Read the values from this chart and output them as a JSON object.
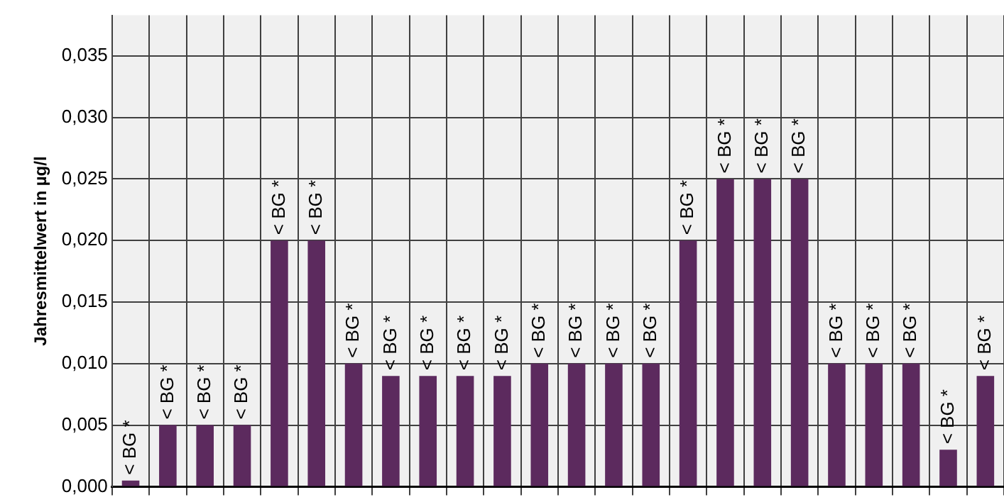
{
  "chart_data": {
    "type": "bar",
    "ylabel": "Jahresmittelwert in µg/l",
    "categories": [
      null,
      null,
      null,
      null,
      null,
      null,
      null,
      null,
      null,
      null,
      null,
      null,
      null,
      null,
      null,
      null,
      null,
      null,
      null,
      null,
      null,
      null,
      null,
      null
    ],
    "values": [
      0.0005,
      0.005,
      0.005,
      0.005,
      0.02,
      0.02,
      0.01,
      0.009,
      0.009,
      0.009,
      0.009,
      0.01,
      0.01,
      0.01,
      0.01,
      0.02,
      0.025,
      0.025,
      0.025,
      0.01,
      0.01,
      0.01,
      0.003,
      0.009
    ],
    "value_labels": [
      "< BG *",
      "< BG *",
      "< BG *",
      "< BG *",
      "< BG *",
      "< BG *",
      "< BG *",
      "< BG *",
      "< BG *",
      "< BG *",
      "< BG *",
      "< BG *",
      "< BG *",
      "< BG *",
      "< BG *",
      "< BG *",
      "< BG *",
      "< BG *",
      "< BG *",
      "< BG *",
      "< BG *",
      "< BG *",
      "< BG *",
      "< BG *"
    ],
    "color": "#5c2a5e",
    "ylim": [
      0,
      0.0383
    ],
    "yticks": [
      {
        "value": 0,
        "label": "0,000"
      },
      {
        "value": 0.005,
        "label": "0,005"
      },
      {
        "value": 0.01,
        "label": "0,010"
      },
      {
        "value": 0.015,
        "label": "0,015"
      },
      {
        "value": 0.02,
        "label": "0,020"
      },
      {
        "value": 0.025,
        "label": "0,025"
      },
      {
        "value": 0.03,
        "label": "0,030"
      },
      {
        "value": 0.035,
        "label": "0,035"
      }
    ],
    "grid": true,
    "tick_labels": "y"
  }
}
